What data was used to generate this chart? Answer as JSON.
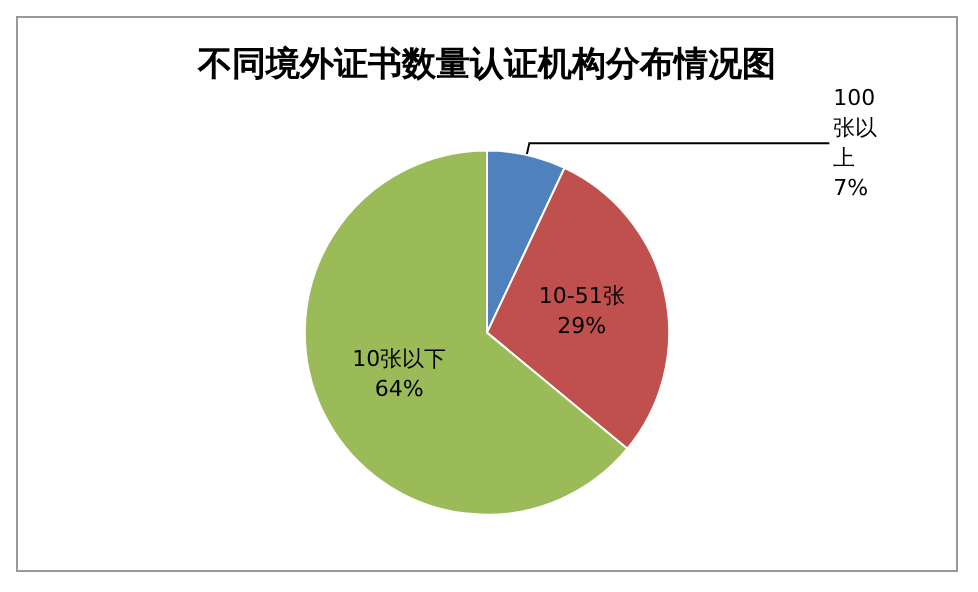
{
  "chart_data": {
    "type": "pie",
    "title": "不同境外证书数量认证机构分布情况图",
    "categories": [
      "100张以上",
      "10-51张",
      "10张以下"
    ],
    "values": [
      7,
      29,
      64
    ],
    "value_labels": [
      "7%",
      "29%",
      "64%"
    ],
    "colors": [
      "#4f81bd",
      "#c0504d",
      "#9bbb59"
    ],
    "legend": false
  }
}
